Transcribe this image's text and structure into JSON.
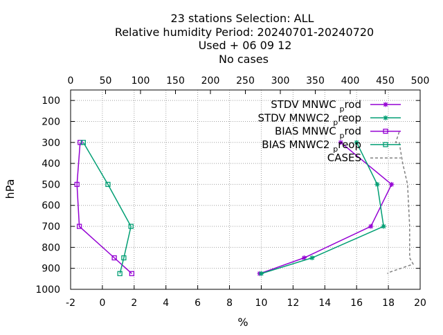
{
  "chart_data": {
    "type": "line",
    "title_lines": [
      "23 stations Selection: ALL",
      "Relative humidity  Period: 20240701-20240720",
      "Used   + 06 09 12",
      "No cases"
    ],
    "xlabel": "%",
    "ylabel": "hPa",
    "xlim": [
      -2,
      20
    ],
    "ylim": [
      1000,
      50
    ],
    "y_reversed": true,
    "x_ticks": [
      -2,
      0,
      2,
      4,
      6,
      8,
      10,
      12,
      14,
      16,
      18,
      20
    ],
    "x_tick_labels": [
      "-2",
      "0",
      "2",
      "4",
      "6",
      "8",
      "10",
      "12",
      "14",
      "16",
      "18",
      "20"
    ],
    "y_ticks": [
      100,
      200,
      300,
      400,
      500,
      600,
      700,
      800,
      900,
      1000
    ],
    "y_tick_labels": [
      "100",
      "200",
      "300",
      "400",
      "500",
      "600",
      "700",
      "800",
      "900",
      "1000"
    ],
    "x2lim": [
      0,
      500
    ],
    "x2_ticks": [
      0,
      50,
      100,
      150,
      200,
      250,
      300,
      350,
      400,
      450,
      500
    ],
    "x2_tick_labels": [
      "0",
      "50",
      "100",
      "150",
      "200",
      "250",
      "300",
      "350",
      "400",
      "450",
      "500"
    ],
    "grid": true,
    "legend_position": "top-right",
    "series": [
      {
        "name": "STDV MNWC_prod",
        "legend_main": "STDV MNWC",
        "legend_sub": "p",
        "legend_tail": "rod",
        "color": "#9400d3",
        "marker": "star",
        "axis": "x1",
        "points": [
          [
            15.0,
            300
          ],
          [
            18.2,
            500
          ],
          [
            16.9,
            700
          ],
          [
            12.7,
            850
          ],
          [
            9.9,
            925
          ]
        ]
      },
      {
        "name": "STDV MNWC2_preop",
        "legend_main": "STDV MNWC2",
        "legend_sub": "p",
        "legend_tail": "reop",
        "color": "#009e73",
        "marker": "star",
        "axis": "x1",
        "points": [
          [
            16.0,
            300
          ],
          [
            17.3,
            500
          ],
          [
            17.7,
            700
          ],
          [
            13.2,
            850
          ],
          [
            10.0,
            925
          ]
        ]
      },
      {
        "name": "BIAS MNWC_prod",
        "legend_main": "BIAS MNWC",
        "legend_sub": "p",
        "legend_tail": "rod",
        "color": "#9400d3",
        "marker": "square",
        "axis": "x1",
        "points": [
          [
            -1.4,
            300
          ],
          [
            -1.6,
            500
          ],
          [
            -1.45,
            700
          ],
          [
            0.75,
            850
          ],
          [
            1.85,
            925
          ]
        ]
      },
      {
        "name": "BIAS MNWC2_preop",
        "legend_main": "BIAS MNWC2",
        "legend_sub": "p",
        "legend_tail": "reop",
        "color": "#009e73",
        "marker": "square",
        "axis": "x1",
        "points": [
          [
            -1.2,
            300
          ],
          [
            0.35,
            500
          ],
          [
            1.8,
            700
          ],
          [
            1.35,
            850
          ],
          [
            1.1,
            925
          ]
        ]
      },
      {
        "name": "CASES",
        "legend_main": "CASES",
        "legend_sub": "",
        "legend_tail": "",
        "color": "#808080",
        "marker": "none",
        "dashed": true,
        "axis": "x2",
        "points": [
          [
            470,
            250
          ],
          [
            465,
            300
          ],
          [
            470,
            300
          ],
          [
            475,
            400
          ],
          [
            482,
            500
          ],
          [
            485,
            700
          ],
          [
            485,
            850
          ],
          [
            490,
            880
          ],
          [
            455,
            920
          ],
          [
            453,
            925
          ]
        ]
      }
    ]
  }
}
